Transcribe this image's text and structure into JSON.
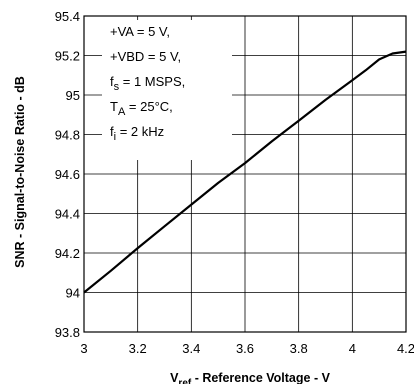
{
  "chart_data": {
    "type": "line",
    "xlabel_main": "V",
    "xlabel_sub": "ref",
    "xlabel_rest": " - Reference Voltage - V",
    "ylabel": "SNR - Signal-to-Noise Ratio - dB",
    "xlim": [
      3,
      4.2
    ],
    "ylim": [
      93.8,
      95.4
    ],
    "xticks": [
      "3",
      "3.2",
      "3.4",
      "3.6",
      "3.8",
      "4",
      "4.2"
    ],
    "yticks": [
      "93.8",
      "94",
      "94.2",
      "94.4",
      "94.6",
      "94.8",
      "95",
      "95.2",
      "95.4"
    ],
    "grid": true,
    "annotations": [
      {
        "text": "+VA = 5 V,"
      },
      {
        "text": "+VBD = 5 V,"
      },
      {
        "main": "f",
        "sub": "s",
        "rest": " = 1 MSPS,"
      },
      {
        "main": "T",
        "sub": "A",
        "rest": " = 25°C,"
      },
      {
        "main": "f",
        "sub": "i",
        "rest": " = 2 kHz"
      }
    ],
    "series": [
      {
        "x": [
          3.0,
          3.1,
          3.2,
          3.3,
          3.4,
          3.5,
          3.6,
          3.7,
          3.8,
          3.9,
          4.0,
          4.05,
          4.1,
          4.15,
          4.2
        ],
        "y": [
          94.0,
          94.11,
          94.225,
          94.335,
          94.445,
          94.555,
          94.655,
          94.765,
          94.87,
          94.975,
          95.075,
          95.125,
          95.18,
          95.21,
          95.22
        ]
      }
    ]
  }
}
